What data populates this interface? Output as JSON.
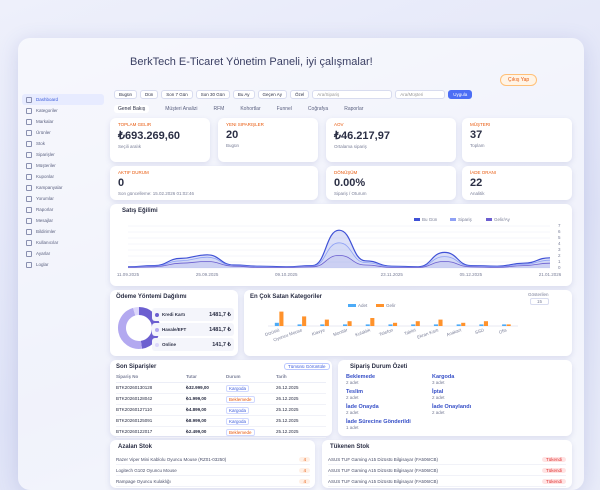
{
  "header": {
    "title": "BerkTech E-Ticaret Yönetim Paneli, iyi çalışmalar!",
    "button": "Çıkış Yap"
  },
  "sidebar": [
    "Dashboard",
    "Kategoriler",
    "Markalar",
    "Ürünler",
    "Stok",
    "Siparişler",
    "Müşteriler",
    "Kuponlar",
    "Kampanyalar",
    "Yorumlar",
    "Raporlar",
    "Mesajlar",
    "Bildirimler",
    "Kullanıcılar",
    "Ayarlar",
    "Loglar"
  ],
  "filters": {
    "buttons": [
      "Bugün",
      "Dün",
      "Son 7 Gün",
      "Son 30 Gün",
      "Bu Ay",
      "Geçen Ay",
      "Özel"
    ],
    "search": "Ara/Sipariş",
    "search2": "Ara/Müşteri",
    "apply": "Uygula"
  },
  "tabs": [
    "Genel Bakış",
    "Müşteri Analizi",
    "RFM",
    "Kohortlar",
    "Funnel",
    "Coğrafya",
    "Raporlar"
  ],
  "cards": [
    {
      "label": "Toplam Gelir",
      "value": "₺693.269,60",
      "note": "Seçili aralık"
    },
    {
      "label": "Yeni Siparişler",
      "value": "20",
      "note": "Bugün"
    },
    {
      "label": "AOV",
      "value": "₺46.217,97",
      "note": "Ortalama sipariş"
    },
    {
      "label": "Müşteri",
      "value": "37",
      "note": "Toplam"
    },
    {
      "label": "Aktif Durum",
      "value": "0",
      "note": "Son güncelleme: 15.02.2026 01:02:46"
    },
    {
      "label": "Dönüşüm",
      "value": "0.00%",
      "note": "Sipariş / Oturum"
    },
    {
      "label": "İade Oranı",
      "value": "22",
      "note": "Analitik"
    }
  ],
  "chart_data": [
    {
      "type": "line",
      "title": "Satış Eğilimi",
      "categories": [
        "11.09.2025",
        null,
        null,
        "25.09.2025",
        null,
        null,
        "09.10.2025",
        null,
        null,
        null,
        "23.11.2025",
        null,
        null,
        "05.12.2025",
        null,
        null,
        "21.01.2026"
      ],
      "series": [
        {
          "name": "Bu Gün",
          "color": "#3f51d6",
          "values": [
            0.2,
            0.4,
            1.6,
            2.2,
            0.5,
            0.3,
            0.2,
            0.4,
            6.3,
            1.2,
            0.3,
            0.2,
            2.6,
            0.4,
            0.3,
            0.8,
            1.7
          ]
        },
        {
          "name": "Sipariş",
          "color": "#8fa1f5",
          "values": [
            0.1,
            0.3,
            1.2,
            1.8,
            0.4,
            0.2,
            0.1,
            0.3,
            4.2,
            0.9,
            0.2,
            0.1,
            1.9,
            0.3,
            0.2,
            0.6,
            1.3
          ]
        },
        {
          "name": "Gelir/Ay",
          "color": "#6c5fd0",
          "values": [
            0.1,
            0.2,
            0.8,
            1.1,
            0.3,
            0.1,
            0.1,
            0.2,
            2.1,
            0.5,
            0.1,
            0.1,
            1.1,
            0.2,
            0.1,
            0.4,
            0.8
          ]
        }
      ],
      "ylim": [
        0,
        7
      ],
      "yticks": [
        0,
        1,
        2,
        3,
        4,
        5,
        6,
        7
      ],
      "grid": true,
      "legend": "top-right"
    },
    {
      "type": "pie",
      "title": "Ödeme Yöntemi Dağılımı",
      "categories": [
        "Kredi Kartı",
        "Havale/EFT",
        "Online"
      ],
      "values": [
        1481.7,
        1481.7,
        141.7
      ],
      "value_labels": [
        "1481,7 ₺",
        "1481,7 ₺",
        "141,7 ₺"
      ],
      "colors": [
        "#6c5fd0",
        "#b3a9f0",
        "#dcd7fb"
      ]
    },
    {
      "type": "bar",
      "title": "En Çok Satan Kategoriler",
      "categories": [
        "Dizüstü",
        "Oyuncu Mouse",
        "Klavye",
        "Monitör",
        "Kulaklık",
        "Telefon",
        "Tablet",
        "Ekran Kartı",
        "Anakart",
        "SSD",
        "Ofis"
      ],
      "series": [
        {
          "name": "Adet",
          "color": "#4dabf7",
          "values": [
            2,
            1,
            1,
            1,
            1,
            1,
            1,
            1,
            1,
            1,
            1
          ]
        },
        {
          "name": "Gelir",
          "color": "#ff922b",
          "values": [
            9,
            6,
            4,
            3,
            5,
            2,
            3,
            4,
            2,
            3,
            1
          ]
        }
      ],
      "ylim": [
        0,
        10
      ],
      "control_label": "Gösterilen",
      "control_value": "15"
    }
  ],
  "orders": {
    "title": "Son Siparişler",
    "button": "Tümünü Görüntüle",
    "columns": [
      "Sipariş No",
      "Tutar",
      "Durum",
      "Tarih"
    ],
    "rows": [
      [
        "BTK20260130128",
        "₺32.999,00",
        "Kargoda",
        "26.12.2025"
      ],
      [
        "BTK20260128042",
        "₺1.999,00",
        "Beklemede",
        "26.12.2025"
      ],
      [
        "BTK20260127110",
        "₺4.899,00",
        "Kargoda",
        "25.12.2025"
      ],
      [
        "BTK20260125091",
        "₺8.999,00",
        "Kargoda",
        "25.12.2025"
      ],
      [
        "BTK20260122017",
        "₺2.499,00",
        "Beklemede",
        "25.12.2025"
      ]
    ]
  },
  "status": {
    "title": "Sipariş Durum Özeti",
    "items": [
      {
        "label": "Beklemede",
        "count": "2 adet"
      },
      {
        "label": "Kargoda",
        "count": "3 adet"
      },
      {
        "label": "Teslim",
        "count": "2 adet"
      },
      {
        "label": "İptal",
        "count": "2 adet"
      },
      {
        "label": "İade Onayda",
        "count": "2 adet"
      },
      {
        "label": "İade Onaylandı",
        "count": "2 adet"
      },
      {
        "label": "İade Sürecine Gönderildi",
        "count": "1 adet"
      }
    ]
  },
  "low_stock": {
    "title": "Azalan Stok",
    "items": [
      {
        "name": "Razer Viper Mini Kablolu Oyuncu Mouse (RZ01-03250)",
        "badge": "4"
      },
      {
        "name": "Logitech G102 Oyuncu Mouse",
        "badge": "4"
      },
      {
        "name": "Rampage Oyuncu Kulaklığı",
        "badge": "4"
      }
    ]
  },
  "out_stock": {
    "title": "Tükenen Stok",
    "items": [
      {
        "name": "ASUS TUF Gaming A15 Dizüstü Bilgisayar (FA506ICB)",
        "badge": "Tükendi"
      },
      {
        "name": "ASUS TUF Gaming A15 Dizüstü Bilgisayar (FA506ICB)",
        "badge": "Tükendi"
      },
      {
        "name": "ASUS TUF Gaming A15 Dizüstü Bilgisayar (FA506ICB)",
        "badge": "Tükendi"
      }
    ]
  }
}
